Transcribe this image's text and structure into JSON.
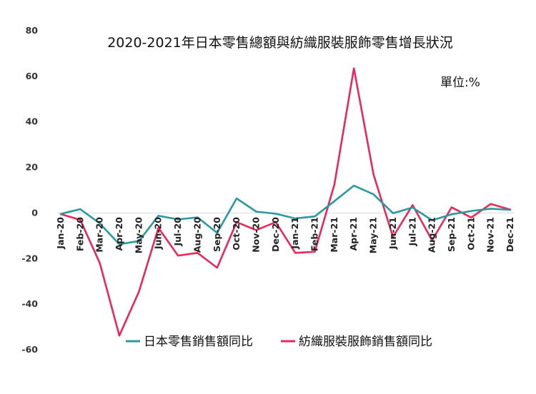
{
  "chart_data": {
    "type": "line",
    "title": "2020-2021年日本零售總額與紡織服裝服飾零售增長狀況",
    "unit_label": "單位:%",
    "ylim": [
      -60,
      80
    ],
    "yticks": [
      80,
      60,
      40,
      20,
      0,
      -20,
      -40,
      -60
    ],
    "grid": false,
    "legend_position": "bottom",
    "categories": [
      "Jan-20",
      "Feb-20",
      "Mar-20",
      "Apr-20",
      "May-20",
      "Jun-20",
      "Jul-20",
      "Aug-20",
      "Sep-20",
      "Oct-20",
      "Nov-20",
      "Dec-20",
      "Jan-21",
      "Feb-21",
      "Mar-21",
      "Apr-21",
      "May-21",
      "Jun-21",
      "Jul-21",
      "Aug-21",
      "Sep-21",
      "Oct-21",
      "Nov-21",
      "Dec-21"
    ],
    "series": [
      {
        "name": "日本零售銷售額同比",
        "color": "#2a9aa0",
        "values": [
          -0.4,
          1.7,
          -4.6,
          -13.7,
          -12.3,
          -1.2,
          -2.8,
          -1.9,
          -8.7,
          6.4,
          0.6,
          -0.3,
          -2.4,
          -1.5,
          5.2,
          12.0,
          8.2,
          -0.1,
          2.4,
          -3.2,
          -0.6,
          0.9,
          1.9,
          1.4
        ]
      },
      {
        "name": "紡織服裝服飾銷售額同比",
        "color": "#e8295a",
        "values": [
          -0.5,
          -3.0,
          -22.0,
          -53.8,
          -34.5,
          -6.5,
          -18.7,
          -17.5,
          -24.0,
          -4.0,
          -7.5,
          -4.0,
          -17.5,
          -17.0,
          12.5,
          63.5,
          17.0,
          -10.5,
          3.5,
          -12.0,
          2.5,
          -2.0,
          4.0,
          1.5
        ]
      }
    ]
  }
}
